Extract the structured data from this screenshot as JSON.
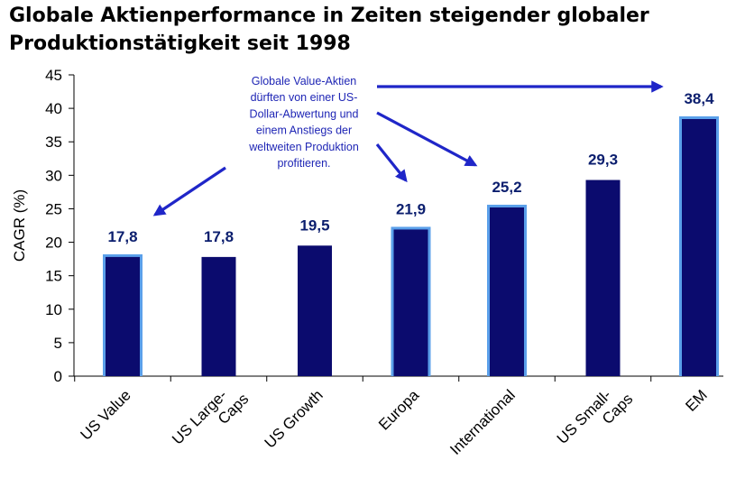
{
  "title_lines": [
    "Globale Aktienperformance in Zeiten steigender globaler",
    "Produktionstätigkeit seit 1998"
  ],
  "chart_data": {
    "type": "bar",
    "title": "Globale Aktienperformance in Zeiten steigender globaler Produktionstätigkeit seit 1998",
    "ylabel": "CAGR (%)",
    "xlabel": "",
    "ylim": [
      0,
      45
    ],
    "yticks": [
      0,
      5,
      10,
      15,
      20,
      25,
      30,
      35,
      40,
      45
    ],
    "grid": false,
    "categories": [
      [
        "US Value"
      ],
      [
        "US Large-",
        "Caps"
      ],
      [
        "US Growth"
      ],
      [
        "Europa"
      ],
      [
        "International"
      ],
      [
        "US Small-",
        "Caps"
      ],
      [
        "EM"
      ]
    ],
    "values": [
      17.8,
      17.8,
      19.5,
      21.9,
      25.2,
      29.3,
      38.4
    ],
    "value_labels": [
      "17,8",
      "17,8",
      "19,5",
      "21,9",
      "25,2",
      "29,3",
      "38,4"
    ],
    "highlighted": [
      true,
      false,
      false,
      true,
      true,
      false,
      true
    ],
    "annotation": {
      "lines": [
        "Globale Value-Aktien",
        "dürften von einer US-",
        "Dollar-Abwertung und",
        "einem Anstiegs der",
        "weltweiten Produktion",
        "profitieren."
      ],
      "arrow_targets": [
        "US Value",
        "Europa",
        "International",
        "EM"
      ]
    }
  },
  "colors": {
    "bar_fill": "#0b0b6e",
    "highlight_outline": "#5ba0ea",
    "value_label": "#0b1e6e",
    "annotation_text": "#1f26b5",
    "arrow": "#1f26c8"
  }
}
